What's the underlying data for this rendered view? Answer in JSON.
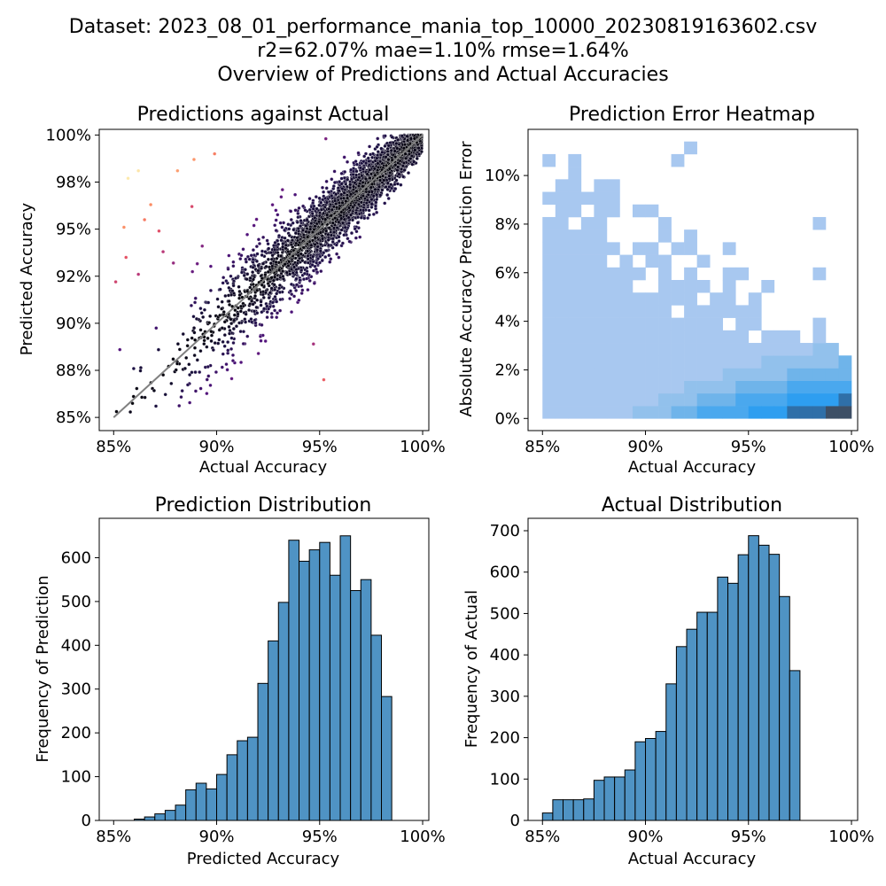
{
  "figure": {
    "title_lines": [
      "Dataset: 2023_08_01_performance_mania_top_10000_20230819163602.csv",
      "r2=62.07% mae=1.10% rmse=1.64%",
      "Overview of Predictions and Actual Accuracies"
    ]
  },
  "chart_data": [
    {
      "type": "scatter",
      "title": "Predictions against Actual",
      "xlabel": "Actual Accuracy",
      "ylabel": "Predicted Accuracy",
      "xlim": [
        0.843,
        1.003
      ],
      "ylim": [
        0.843,
        1.003
      ],
      "xticks": [
        0.85,
        0.9,
        0.95,
        1.0
      ],
      "xtick_labels": [
        "85%",
        "90%",
        "95%",
        "100%"
      ],
      "yticks": [
        0.85,
        0.875,
        0.9,
        0.925,
        0.95,
        0.975,
        1.0
      ],
      "ytick_labels": [
        "85%",
        "88%",
        "90%",
        "92%",
        "95%",
        "98%",
        "100%"
      ],
      "colormap": "magma (color = absolute prediction error)",
      "reference_line": {
        "x": [
          0.85,
          1.0
        ],
        "y": [
          0.85,
          1.0
        ],
        "color": "#808080"
      },
      "point_count_approx": 8000,
      "density_outline": "points concentrated along the diagonal, spread widening toward lower accuracy; high-error outliers in the upper-left",
      "outliers_sample": [
        {
          "x": 0.857,
          "y": 0.977,
          "err": 0.12
        },
        {
          "x": 0.862,
          "y": 0.981,
          "err": 0.119
        },
        {
          "x": 0.865,
          "y": 0.955,
          "err": 0.09
        },
        {
          "x": 0.855,
          "y": 0.951,
          "err": 0.096
        },
        {
          "x": 0.868,
          "y": 0.963,
          "err": 0.095
        },
        {
          "x": 0.872,
          "y": 0.949,
          "err": 0.077
        },
        {
          "x": 0.881,
          "y": 0.981,
          "err": 0.1
        },
        {
          "x": 0.889,
          "y": 0.987,
          "err": 0.098
        },
        {
          "x": 0.899,
          "y": 0.99,
          "err": 0.091
        },
        {
          "x": 0.874,
          "y": 0.938,
          "err": 0.064
        },
        {
          "x": 0.856,
          "y": 0.935,
          "err": 0.079
        },
        {
          "x": 0.851,
          "y": 0.922,
          "err": 0.071
        },
        {
          "x": 0.862,
          "y": 0.926,
          "err": 0.064
        },
        {
          "x": 0.879,
          "y": 0.932,
          "err": 0.053
        },
        {
          "x": 0.888,
          "y": 0.962,
          "err": 0.074
        },
        {
          "x": 0.893,
          "y": 0.941,
          "err": 0.048
        },
        {
          "x": 0.953,
          "y": 0.998,
          "err": 0.045
        },
        {
          "x": 0.952,
          "y": 0.87,
          "err": 0.082
        },
        {
          "x": 0.947,
          "y": 0.889,
          "err": 0.058
        },
        {
          "x": 0.853,
          "y": 0.886,
          "err": 0.033
        }
      ]
    },
    {
      "type": "heatmap",
      "title": "Prediction Error Heatmap",
      "xlabel": "Actual Accuracy",
      "ylabel": "Absolute Accuracy Prediction Error",
      "xlim": [
        0.843,
        1.003
      ],
      "ylim": [
        -0.005,
        0.119
      ],
      "xticks": [
        0.85,
        0.9,
        0.95,
        1.0
      ],
      "xtick_labels": [
        "85%",
        "90%",
        "95%",
        "100%"
      ],
      "yticks": [
        0.0,
        0.02,
        0.04,
        0.06,
        0.08,
        0.1
      ],
      "ytick_labels": [
        "0%",
        "2%",
        "4%",
        "6%",
        "8%",
        "10%"
      ],
      "x_bins": [
        0.85,
        1.0,
        24
      ],
      "y_bins": [
        0.0,
        0.114,
        22
      ],
      "cell_counts_description": "2D histogram: lowest error rows densest near 97-100% actual accuracy (darkest cells at 98-100%, error 0-0.5%); sparse cells extend up to ~11% error at 86-88% actual accuracy",
      "colors": {
        "low": "#a8c8f0",
        "mid": "#2e9ef0",
        "high": "#3a4a60"
      }
    },
    {
      "type": "bar",
      "title": "Prediction Distribution",
      "xlabel": "Predicted Accuracy",
      "ylabel": "Frequency of Prediction",
      "xlim": [
        0.843,
        1.003
      ],
      "ylim": [
        0,
        690
      ],
      "xticks": [
        0.85,
        0.9,
        0.95,
        1.0
      ],
      "xtick_labels": [
        "85%",
        "90%",
        "95%",
        "100%"
      ],
      "yticks": [
        0,
        100,
        200,
        300,
        400,
        500,
        600
      ],
      "ytick_labels": [
        "0",
        "100",
        "200",
        "300",
        "400",
        "500",
        "600"
      ],
      "bin_start": 0.85,
      "bin_width": 0.005,
      "values": [
        0,
        0,
        3,
        8,
        15,
        23,
        35,
        70,
        85,
        72,
        105,
        150,
        182,
        190,
        313,
        410,
        498,
        640,
        592,
        618,
        635,
        560,
        650,
        525,
        550,
        423,
        283
      ],
      "color": "#4f93c4"
    },
    {
      "type": "bar",
      "title": "Actual Distribution",
      "xlabel": "Actual Accuracy",
      "ylabel": "Frequency of Actual",
      "xlim": [
        0.843,
        1.003
      ],
      "ylim": [
        0,
        730
      ],
      "xticks": [
        0.85,
        0.9,
        0.95,
        1.0
      ],
      "xtick_labels": [
        "85%",
        "90%",
        "95%",
        "100%"
      ],
      "yticks": [
        0,
        100,
        200,
        300,
        400,
        500,
        600,
        700
      ],
      "ytick_labels": [
        "0",
        "100",
        "200",
        "300",
        "400",
        "500",
        "600",
        "700"
      ],
      "bin_start": 0.85,
      "bin_width": 0.005,
      "values": [
        18,
        50,
        50,
        50,
        52,
        97,
        105,
        105,
        122,
        190,
        198,
        215,
        330,
        420,
        462,
        503,
        503,
        588,
        573,
        642,
        688,
        665,
        643,
        541,
        362
      ],
      "color": "#4f93c4"
    }
  ]
}
